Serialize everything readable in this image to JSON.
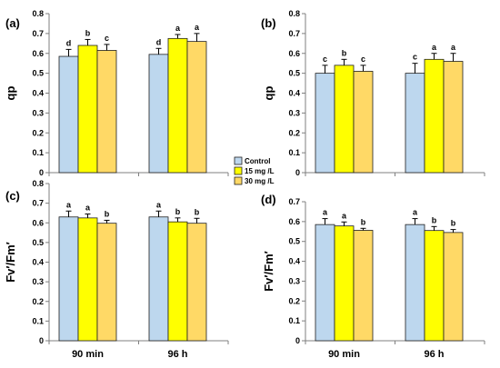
{
  "colors": {
    "control": "#bdd7ee",
    "mg15": "#ffff00",
    "mg30": "#ffd966",
    "border": "#1f1f1f",
    "axis": "#7f7f7f"
  },
  "legend": {
    "entries": [
      "Control",
      "15 mg /L",
      "30 mg /L"
    ]
  },
  "chart_data": [
    {
      "type": "bar",
      "panel_label": "(a)",
      "ylabel": "qp",
      "ylim": [
        0,
        0.8
      ],
      "yticks": [
        "0",
        "0.1",
        "0.2",
        "0.3",
        "0.4",
        "0.5",
        "0.6",
        "0.7",
        "0.8"
      ],
      "categories": [
        "90 min",
        "96 h"
      ],
      "series": [
        {
          "name": "Control",
          "values": [
            0.585,
            0.595
          ],
          "errors": [
            0.035,
            0.03
          ],
          "letters": [
            "d",
            "d"
          ]
        },
        {
          "name": "15 mg /L",
          "values": [
            0.64,
            0.675
          ],
          "errors": [
            0.03,
            0.02
          ],
          "letters": [
            "b",
            "a"
          ]
        },
        {
          "name": "30 mg /L",
          "values": [
            0.615,
            0.66
          ],
          "errors": [
            0.03,
            0.04
          ],
          "letters": [
            "c",
            "a"
          ]
        }
      ]
    },
    {
      "type": "bar",
      "panel_label": "(b)",
      "ylabel": "qp",
      "ylim": [
        0,
        0.8
      ],
      "yticks": [
        "0",
        "0.1",
        "0.2",
        "0.3",
        "0.4",
        "0.5",
        "0.6",
        "0.7",
        "0.8"
      ],
      "categories": [
        "90 min",
        "96 h"
      ],
      "series": [
        {
          "name": "Control",
          "values": [
            0.5,
            0.5
          ],
          "errors": [
            0.04,
            0.05
          ],
          "letters": [
            "c",
            "c"
          ]
        },
        {
          "name": "15 mg /L",
          "values": [
            0.54,
            0.57
          ],
          "errors": [
            0.03,
            0.03
          ],
          "letters": [
            "b",
            "a"
          ]
        },
        {
          "name": "30 mg /L",
          "values": [
            0.51,
            0.56
          ],
          "errors": [
            0.03,
            0.04
          ],
          "letters": [
            "c",
            "a"
          ]
        }
      ]
    },
    {
      "type": "bar",
      "panel_label": "(c)",
      "ylabel": "Fv′/Fm′",
      "ylim": [
        0,
        0.8
      ],
      "yticks": [
        "0",
        "0.1",
        "0.2",
        "0.3",
        "0.4",
        "0.5",
        "0.6",
        "0.7",
        "0.8"
      ],
      "categories": [
        "90 min",
        "96 h"
      ],
      "series": [
        {
          "name": "Control",
          "values": [
            0.63,
            0.63
          ],
          "errors": [
            0.03,
            0.03
          ],
          "letters": [
            "a",
            "a"
          ]
        },
        {
          "name": "15 mg /L",
          "values": [
            0.625,
            0.605
          ],
          "errors": [
            0.02,
            0.02
          ],
          "letters": [
            "a",
            "b"
          ]
        },
        {
          "name": "30 mg /L",
          "values": [
            0.598,
            0.598
          ],
          "errors": [
            0.015,
            0.025
          ],
          "letters": [
            "b",
            "b"
          ]
        }
      ]
    },
    {
      "type": "bar",
      "panel_label": "(d)",
      "ylabel": "Fv′/Fm′",
      "ylim": [
        0,
        0.7
      ],
      "yticks": [
        "0",
        "0.1",
        "0.2",
        "0.3",
        "0.4",
        "0.5",
        "0.6",
        "0.7"
      ],
      "categories": [
        "90 min",
        "96 h"
      ],
      "series": [
        {
          "name": "Control",
          "values": [
            0.585,
            0.585
          ],
          "errors": [
            0.03,
            0.03
          ],
          "letters": [
            "a",
            "a"
          ]
        },
        {
          "name": "15 mg /L",
          "values": [
            0.578,
            0.555
          ],
          "errors": [
            0.02,
            0.02
          ],
          "letters": [
            "a",
            "b"
          ]
        },
        {
          "name": "30 mg /L",
          "values": [
            0.556,
            0.545
          ],
          "errors": [
            0.01,
            0.015
          ],
          "letters": [
            "b",
            "b"
          ]
        }
      ]
    }
  ]
}
